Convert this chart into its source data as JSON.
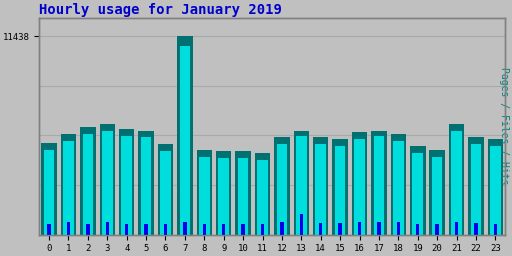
{
  "title": "Hourly usage for January 2019",
  "title_color": "#0000cc",
  "title_fontsize": 10,
  "background_color": "#c0c0c0",
  "plot_bg_color": "#c0c0c0",
  "border_color": "#808080",
  "ylabel": "Pages / Files / Hits",
  "ylabel_color": "#008080",
  "ylabel_fontsize": 7,
  "xlim": [
    -0.5,
    23.5
  ],
  "ylim": [
    0,
    12500
  ],
  "ytick_val": 11438,
  "hours": [
    0,
    1,
    2,
    3,
    4,
    5,
    6,
    7,
    8,
    9,
    10,
    11,
    12,
    13,
    14,
    15,
    16,
    17,
    18,
    19,
    20,
    21,
    22,
    23
  ],
  "pages": [
    5300,
    5800,
    6200,
    6400,
    6100,
    6000,
    5200,
    11438,
    4900,
    4800,
    4800,
    4700,
    5600,
    6000,
    5600,
    5500,
    5900,
    6000,
    5800,
    5100,
    4900,
    6400,
    5600,
    5500
  ],
  "files": [
    4900,
    5400,
    5800,
    6000,
    5700,
    5600,
    4800,
    10900,
    4500,
    4400,
    4400,
    4300,
    5200,
    5700,
    5200,
    5100,
    5500,
    5700,
    5400,
    4700,
    4500,
    6000,
    5200,
    5100
  ],
  "hits": [
    600,
    700,
    600,
    700,
    600,
    600,
    600,
    700,
    600,
    600,
    600,
    600,
    700,
    1200,
    650,
    650,
    700,
    700,
    700,
    600,
    600,
    700,
    650,
    600
  ],
  "pages_color": "#007070",
  "files_color": "#00dddd",
  "hits_color": "#0000ee",
  "grid_color": "#aaaaaa",
  "font_family": "monospace"
}
